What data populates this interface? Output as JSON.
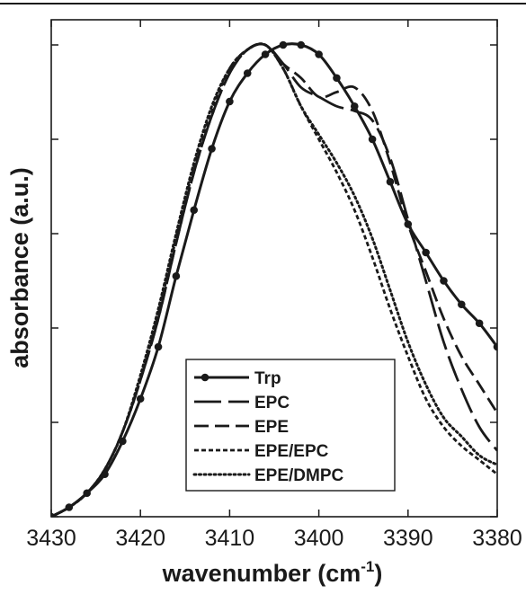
{
  "chart_data": {
    "type": "line",
    "xlabel": "wavenumber (cm",
    "xlabel_superscript": "-1",
    "xlabel_suffix": ")",
    "ylabel": "absorbance (a.u.)",
    "xlim": [
      3430,
      3380
    ],
    "ylim": [
      0,
      1
    ],
    "x_reversed": true,
    "x_ticks": [
      3430,
      3420,
      3410,
      3400,
      3390,
      3380
    ],
    "y_ticks_labeled": false,
    "grid": false,
    "legend_position": "bottom-center",
    "series": [
      {
        "name": "Trp",
        "style": "solid-dots",
        "color": "#1a1a1a",
        "x": [
          3430,
          3428,
          3426,
          3424,
          3422,
          3420,
          3418,
          3416,
          3414,
          3412,
          3410,
          3408,
          3406,
          3404,
          3402,
          3400,
          3398,
          3396,
          3394,
          3392,
          3390,
          3388,
          3386,
          3384,
          3382,
          3380
        ],
        "y": [
          0.0,
          0.02,
          0.05,
          0.09,
          0.16,
          0.25,
          0.36,
          0.51,
          0.65,
          0.78,
          0.88,
          0.94,
          0.98,
          1.0,
          1.0,
          0.98,
          0.93,
          0.87,
          0.8,
          0.71,
          0.62,
          0.56,
          0.5,
          0.45,
          0.41,
          0.36
        ],
        "markers": true
      },
      {
        "name": "EPC",
        "style": "long-dash",
        "color": "#1a1a1a",
        "x": [
          3430,
          3428,
          3426,
          3424,
          3422,
          3420,
          3418,
          3416,
          3414,
          3412,
          3410,
          3408,
          3406,
          3404,
          3402,
          3400,
          3398,
          3396,
          3394,
          3392,
          3390,
          3388,
          3386,
          3384,
          3382,
          3380
        ],
        "y": [
          0.0,
          0.02,
          0.05,
          0.1,
          0.18,
          0.29,
          0.42,
          0.58,
          0.73,
          0.85,
          0.94,
          0.99,
          1.0,
          0.96,
          0.91,
          0.89,
          0.87,
          0.86,
          0.84,
          0.76,
          0.63,
          0.5,
          0.37,
          0.27,
          0.19,
          0.14
        ],
        "markers": false
      },
      {
        "name": "EPE",
        "style": "dash",
        "color": "#1a1a1a",
        "x": [
          3430,
          3428,
          3426,
          3424,
          3422,
          3420,
          3418,
          3416,
          3414,
          3412,
          3410,
          3408,
          3406,
          3404,
          3402,
          3400,
          3398,
          3396,
          3394,
          3392,
          3390,
          3388,
          3386,
          3384,
          3382,
          3380
        ],
        "y": [
          0.0,
          0.02,
          0.05,
          0.1,
          0.18,
          0.29,
          0.42,
          0.58,
          0.73,
          0.85,
          0.94,
          0.99,
          1.0,
          0.96,
          0.93,
          0.89,
          0.9,
          0.91,
          0.86,
          0.75,
          0.62,
          0.52,
          0.42,
          0.34,
          0.28,
          0.22
        ],
        "markers": false
      },
      {
        "name": "EPE/EPC",
        "style": "short-dash",
        "color": "#1a1a1a",
        "x": [
          3430,
          3428,
          3426,
          3424,
          3422,
          3420,
          3418,
          3416,
          3414,
          3412,
          3410,
          3408,
          3406,
          3404,
          3402,
          3400,
          3398,
          3396,
          3394,
          3392,
          3390,
          3388,
          3386,
          3384,
          3382,
          3380
        ],
        "y": [
          0.0,
          0.02,
          0.05,
          0.1,
          0.18,
          0.29,
          0.43,
          0.59,
          0.74,
          0.86,
          0.95,
          0.99,
          1.0,
          0.95,
          0.87,
          0.8,
          0.73,
          0.65,
          0.55,
          0.44,
          0.34,
          0.25,
          0.19,
          0.15,
          0.12,
          0.09
        ],
        "markers": false
      },
      {
        "name": "EPE/DMPC",
        "style": "dot",
        "color": "#1a1a1a",
        "x": [
          3430,
          3428,
          3426,
          3424,
          3422,
          3420,
          3418,
          3416,
          3414,
          3412,
          3410,
          3408,
          3406,
          3404,
          3402,
          3400,
          3398,
          3396,
          3394,
          3392,
          3390,
          3388,
          3386,
          3384,
          3382,
          3380
        ],
        "y": [
          0.0,
          0.02,
          0.05,
          0.1,
          0.18,
          0.3,
          0.44,
          0.6,
          0.75,
          0.87,
          0.95,
          0.99,
          1.0,
          0.95,
          0.87,
          0.81,
          0.75,
          0.68,
          0.59,
          0.48,
          0.37,
          0.28,
          0.21,
          0.17,
          0.13,
          0.11
        ],
        "markers": false
      }
    ]
  }
}
